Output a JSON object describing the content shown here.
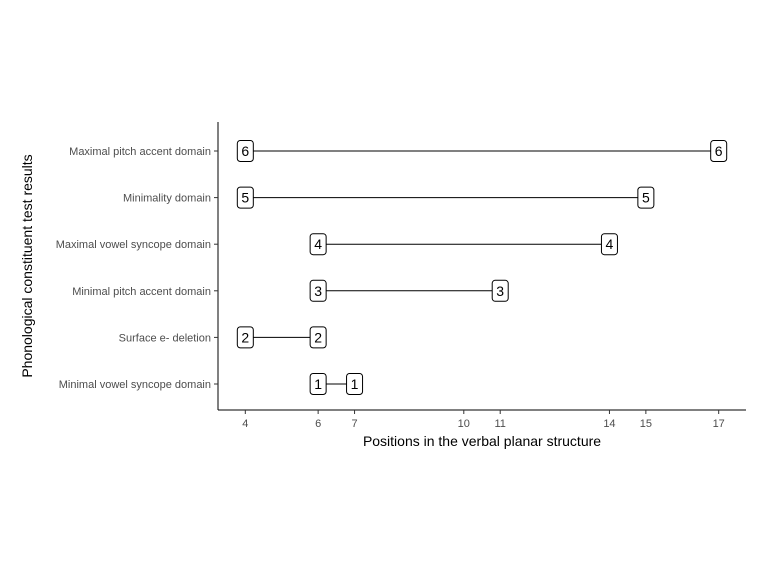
{
  "chart_data": {
    "type": "dumbbell",
    "xlabel": "Positions in the verbal planar structure",
    "ylabel": "Phonological constituent test results",
    "xlim": [
      3.25,
      17.75
    ],
    "x_ticks": [
      4,
      6,
      7,
      10,
      11,
      14,
      15,
      17
    ],
    "grid": false,
    "legend": "none",
    "colors": {
      "line": "#000000",
      "box_fill": "#ffffff",
      "box_stroke": "#000000",
      "axis": "#000000",
      "tick_text": "#4d4d4d"
    },
    "categories": [
      "Maximal pitch accent domain",
      "Minimality domain",
      "Maximal vowel syncope domain",
      "Minimal pitch accent domain",
      "Surface e- deletion",
      "Minimal vowel syncope domain"
    ],
    "segments": [
      {
        "category": "Maximal pitch accent domain",
        "start": 4,
        "end": 17,
        "label": "6"
      },
      {
        "category": "Minimality domain",
        "start": 4,
        "end": 15,
        "label": "5"
      },
      {
        "category": "Maximal vowel syncope domain",
        "start": 6,
        "end": 14,
        "label": "4"
      },
      {
        "category": "Minimal pitch accent domain",
        "start": 6,
        "end": 11,
        "label": "3"
      },
      {
        "category": "Surface e- deletion",
        "start": 4,
        "end": 6,
        "label": "2"
      },
      {
        "category": "Minimal vowel syncope domain",
        "start": 6,
        "end": 7,
        "label": "1"
      }
    ]
  }
}
